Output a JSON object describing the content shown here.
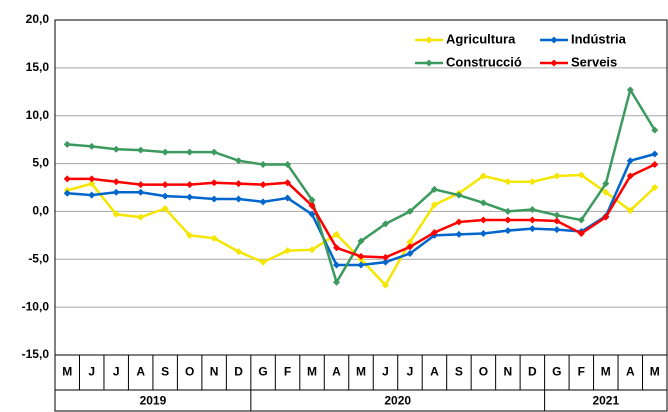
{
  "chart_data": {
    "type": "line",
    "categories": [
      "M",
      "J",
      "J",
      "A",
      "S",
      "O",
      "N",
      "D",
      "G",
      "F",
      "M",
      "A",
      "M",
      "J",
      "J",
      "A",
      "S",
      "O",
      "N",
      "D",
      "G",
      "F",
      "M",
      "A",
      "M"
    ],
    "year_groups": [
      {
        "label": "2019",
        "span": 8
      },
      {
        "label": "2020",
        "span": 12
      },
      {
        "label": "2021",
        "span": 5
      }
    ],
    "series": [
      {
        "name": "Agricultura",
        "color": "#f5e600",
        "values": [
          2.2,
          2.9,
          -0.3,
          -0.6,
          0.3,
          -2.5,
          -2.8,
          -4.2,
          -5.3,
          -4.1,
          -4.0,
          -2.4,
          -5.0,
          -7.7,
          -3.2,
          0.7,
          1.9,
          3.7,
          3.1,
          3.1,
          3.7,
          3.8,
          2.0,
          0.1,
          2.5
        ]
      },
      {
        "name": "Indústria",
        "color": "#0066cc",
        "values": [
          1.9,
          1.7,
          2.0,
          2.0,
          1.6,
          1.5,
          1.3,
          1.3,
          1.0,
          1.4,
          -0.3,
          -5.6,
          -5.6,
          -5.3,
          -4.4,
          -2.5,
          -2.4,
          -2.3,
          -2.0,
          -1.8,
          -1.9,
          -2.1,
          -0.5,
          5.3,
          6.0
        ]
      },
      {
        "name": "Construcció",
        "color": "#3c9a5f",
        "values": [
          7.0,
          6.8,
          6.5,
          6.4,
          6.2,
          6.2,
          6.2,
          5.3,
          4.9,
          4.9,
          1.2,
          -7.4,
          -3.1,
          -1.3,
          0.0,
          2.3,
          1.7,
          0.9,
          0.0,
          0.2,
          -0.4,
          -0.9,
          2.9,
          12.7,
          8.5
        ]
      },
      {
        "name": "Serveis",
        "color": "#ff0000",
        "values": [
          3.4,
          3.4,
          3.1,
          2.8,
          2.8,
          2.8,
          3.0,
          2.9,
          2.8,
          3.0,
          0.6,
          -3.8,
          -4.7,
          -4.8,
          -3.7,
          -2.2,
          -1.1,
          -0.9,
          -0.9,
          -0.9,
          -1.0,
          -2.3,
          -0.6,
          3.7,
          4.9
        ]
      }
    ],
    "ylim": [
      -15,
      20
    ],
    "yticks": [
      {
        "value": -15,
        "label": "-15,0"
      },
      {
        "value": -10,
        "label": "-10,0"
      },
      {
        "value": -5,
        "label": "-5,0"
      },
      {
        "value": 0,
        "label": "0,0"
      },
      {
        "value": 5,
        "label": "5,0"
      },
      {
        "value": 10,
        "label": "10,0"
      },
      {
        "value": 15,
        "label": "15,0"
      },
      {
        "value": 20,
        "label": "20,0"
      }
    ],
    "grid": true,
    "legend": "upper right"
  }
}
